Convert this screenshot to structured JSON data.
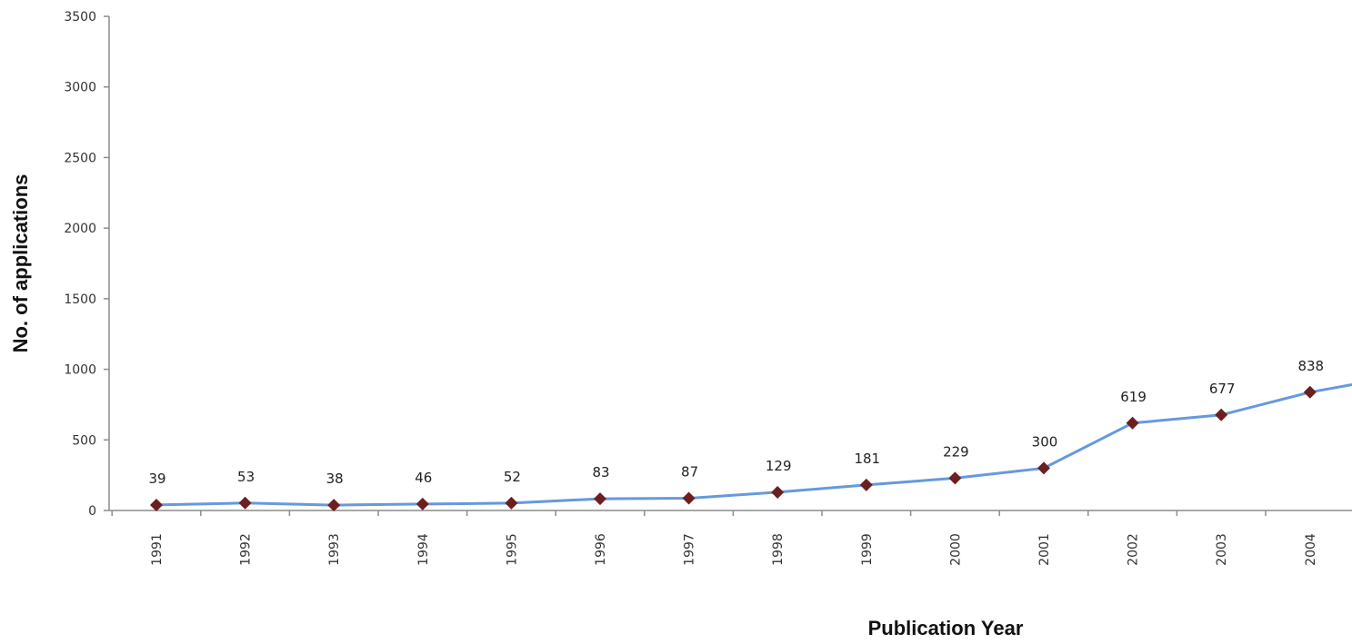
{
  "chart_data": {
    "type": "line",
    "title": "",
    "xlabel": "Publication Year",
    "ylabel": "No. of applications",
    "categories": [
      "1991",
      "1992",
      "1993",
      "1994",
      "1995",
      "1996",
      "1997",
      "1998",
      "1999",
      "2000",
      "2001",
      "2002",
      "2003",
      "2004"
    ],
    "series": [
      {
        "values": [
          39,
          53,
          38,
          46,
          52,
          83,
          87,
          129,
          181,
          229,
          300,
          619,
          677,
          838
        ],
        "data_labels": [
          "39",
          "53",
          "38",
          "46",
          "52",
          "83",
          "87",
          "129",
          "181",
          "229",
          "300",
          "619",
          "677",
          "838"
        ],
        "line_color": "#6699dd",
        "marker": "diamond",
        "marker_color": "#6b1f1f"
      }
    ],
    "continuation_value": 950,
    "y_ticks": [
      "0",
      "500",
      "1000",
      "1500",
      "2000",
      "2500",
      "3000",
      "3500"
    ],
    "ylim": [
      0,
      3500
    ],
    "grid": false,
    "legend": "none"
  }
}
